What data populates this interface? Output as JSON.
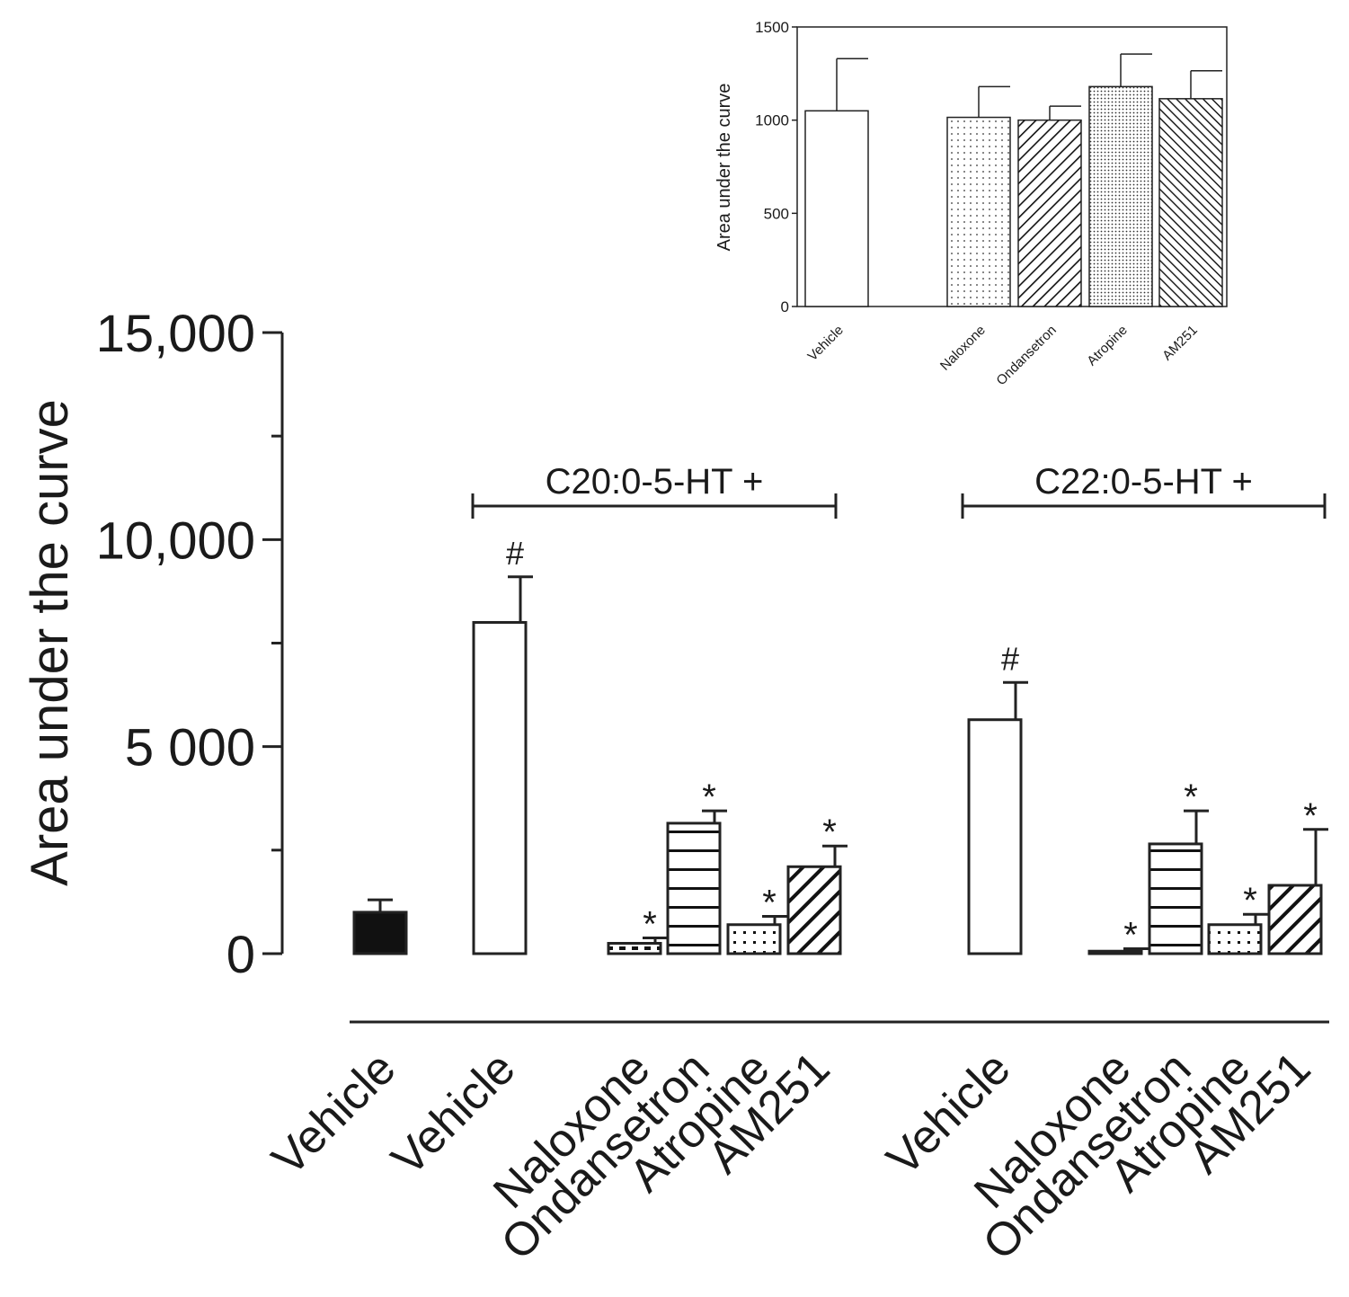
{
  "chart_data": [
    {
      "id": "main",
      "type": "bar",
      "ylabel": "Area under the curve",
      "ylim": [
        0,
        15000
      ],
      "yticks": [
        {
          "value": 0,
          "label": "0"
        },
        {
          "value": 5000,
          "label": "5 000"
        },
        {
          "value": 10000,
          "label": "10,000"
        },
        {
          "value": 15000,
          "label": "15,000"
        }
      ],
      "groups": [
        {
          "label": "C20:0-5-HT +",
          "from": 1,
          "to": 5
        },
        {
          "label": "C22:0-5-HT +",
          "from": 6,
          "to": 10
        }
      ],
      "bars": [
        {
          "label": "Vehicle",
          "value": 1000,
          "error": 300,
          "annotation": "",
          "fill": "solid"
        },
        {
          "label": "Vehicle",
          "value": 8000,
          "error": 1100,
          "annotation": "#",
          "fill": "open"
        },
        {
          "label": "Naloxone",
          "value": 250,
          "error": 130,
          "annotation": "*",
          "fill": "squares"
        },
        {
          "label": "Ondansetron",
          "value": 3150,
          "error": 300,
          "annotation": "*",
          "fill": "horizontal"
        },
        {
          "label": "Atropine",
          "value": 700,
          "error": 200,
          "annotation": "*",
          "fill": "dots"
        },
        {
          "label": "AM251",
          "value": 2100,
          "error": 500,
          "annotation": "*",
          "fill": "diagonal"
        },
        {
          "label": "Vehicle",
          "value": 5650,
          "error": 900,
          "annotation": "#",
          "fill": "open"
        },
        {
          "label": "Naloxone",
          "value": 60,
          "error": 60,
          "annotation": "*",
          "fill": "squares"
        },
        {
          "label": "Ondansetron",
          "value": 2650,
          "error": 800,
          "annotation": "*",
          "fill": "horizontal"
        },
        {
          "label": "Atropine",
          "value": 700,
          "error": 250,
          "annotation": "*",
          "fill": "dots"
        },
        {
          "label": "AM251",
          "value": 1650,
          "error": 1350,
          "annotation": "*",
          "fill": "diagonal"
        }
      ]
    },
    {
      "id": "inset",
      "type": "bar",
      "ylabel": "Area under the curve",
      "ylim": [
        0,
        1500
      ],
      "yticks": [
        {
          "value": 0,
          "label": "0"
        },
        {
          "value": 500,
          "label": "500"
        },
        {
          "value": 1000,
          "label": "1000"
        },
        {
          "value": 1500,
          "label": "1500"
        }
      ],
      "bars": [
        {
          "label": "Vehicle",
          "value": 1050,
          "error": 280,
          "fill": "open"
        },
        {
          "label": "Naloxone",
          "value": 1015,
          "error": 165,
          "fill": "fine-dots"
        },
        {
          "label": "Ondansetron",
          "value": 1000,
          "error": 75,
          "fill": "diagonal"
        },
        {
          "label": "Atropine",
          "value": 1180,
          "error": 175,
          "fill": "dense-dots"
        },
        {
          "label": "AM251",
          "value": 1115,
          "error": 150,
          "fill": "back-diagonal"
        }
      ]
    }
  ]
}
